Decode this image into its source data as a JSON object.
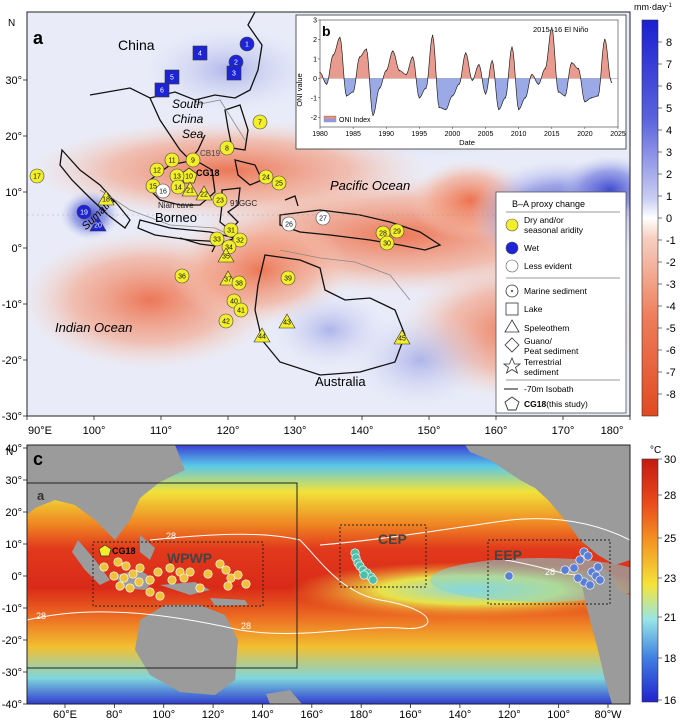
{
  "panel_a": {
    "letter": "a",
    "regions": {
      "china": "China",
      "scs": [
        "South",
        "China",
        "Sea"
      ],
      "borneo": "Borneo",
      "sumatra": "Sumatra",
      "pacific": "Pacific Ocean",
      "indian": "Indian Ocean",
      "australia": "Australia"
    },
    "site_labels": {
      "cg18": "CG18",
      "cb19": "CB19",
      "niah": "Niah cave",
      "gc": "91GGC"
    },
    "lon_ticks": [
      "90°E",
      "100°",
      "110°",
      "120°",
      "130°",
      "140°",
      "150°",
      "160°",
      "170°",
      "180°"
    ],
    "lat_ticks": [
      "30°",
      "20°",
      "10°",
      "0°",
      "-10°",
      "-20°",
      "-30°"
    ],
    "north": "N",
    "sites": [
      {
        "n": "1",
        "t": "wet"
      },
      {
        "n": "2",
        "t": "wet"
      },
      {
        "n": "3",
        "t": "wet"
      },
      {
        "n": "4",
        "t": "wet"
      },
      {
        "n": "5",
        "t": "wet"
      },
      {
        "n": "6",
        "t": "wet"
      },
      {
        "n": "7",
        "t": "dry"
      },
      {
        "n": "8",
        "t": "dry"
      },
      {
        "n": "9",
        "t": "dry"
      },
      {
        "n": "10",
        "t": "dry"
      },
      {
        "n": "11",
        "t": "dry"
      },
      {
        "n": "12",
        "t": "dry"
      },
      {
        "n": "13",
        "t": "dry"
      },
      {
        "n": "14",
        "t": "dry"
      },
      {
        "n": "15",
        "t": "dry"
      },
      {
        "n": "16",
        "t": "less"
      },
      {
        "n": "17",
        "t": "dry"
      },
      {
        "n": "18",
        "t": "dry"
      },
      {
        "n": "19",
        "t": "wet"
      },
      {
        "n": "20",
        "t": "wet"
      },
      {
        "n": "21",
        "t": "dry"
      },
      {
        "n": "22",
        "t": "dry"
      },
      {
        "n": "23",
        "t": "dry"
      },
      {
        "n": "24",
        "t": "dry"
      },
      {
        "n": "25",
        "t": "dry"
      },
      {
        "n": "26",
        "t": "less"
      },
      {
        "n": "27",
        "t": "less"
      },
      {
        "n": "28",
        "t": "dry"
      },
      {
        "n": "29",
        "t": "dry"
      },
      {
        "n": "30",
        "t": "dry"
      },
      {
        "n": "31",
        "t": "dry"
      },
      {
        "n": "32",
        "t": "dry"
      },
      {
        "n": "33",
        "t": "dry"
      },
      {
        "n": "34",
        "t": "dry"
      },
      {
        "n": "35",
        "t": "dry"
      },
      {
        "n": "36",
        "t": "dry"
      },
      {
        "n": "37",
        "t": "dry"
      },
      {
        "n": "38",
        "t": "dry"
      },
      {
        "n": "39",
        "t": "dry"
      },
      {
        "n": "40",
        "t": "dry"
      },
      {
        "n": "41",
        "t": "dry"
      },
      {
        "n": "42",
        "t": "dry"
      },
      {
        "n": "43",
        "t": "dry"
      },
      {
        "n": "44",
        "t": "dry"
      },
      {
        "n": "45",
        "t": "dry"
      }
    ],
    "legend": {
      "title": "B–A proxy change",
      "dry": [
        "Dry and/or",
        "seasonal aridity"
      ],
      "wet": "Wet",
      "less": "Less evident",
      "marine": "Marine sediment",
      "lake": "Lake",
      "speleothem": "Speleothem",
      "guano": [
        "Guano/",
        "Peat sediment"
      ],
      "terrestrial": [
        "Terrestrial",
        "sediment"
      ],
      "isobath": "-70m Isobath",
      "cg18_bold": "CG18",
      "cg18_rest": "(this study)"
    },
    "colorbar": {
      "unit": "mm·day",
      "unit_sup": "-1",
      "ticks": [
        "8",
        "7",
        "6",
        "5",
        "4",
        "3",
        "2",
        "1",
        "0",
        "-1",
        "-2",
        "-3",
        "-4",
        "-5",
        "-6",
        "-7",
        "-8"
      ]
    }
  },
  "panel_b": {
    "letter": "b",
    "annotation": "2015–16 El Niño",
    "ylabel": "ONI value",
    "xlabel": "Date",
    "legend": "ONI Index",
    "yticks": [
      "3",
      "2",
      "1",
      "0",
      "-1",
      "-2"
    ],
    "xticks": [
      "1980",
      "1985",
      "1990",
      "1995",
      "2000",
      "2005",
      "2010",
      "2015",
      "2020",
      "2025"
    ],
    "chart_data": {
      "type": "area",
      "title": "2015–16 El Niño",
      "xlabel": "Date",
      "ylabel": "ONI value",
      "xlim": [
        1980,
        2025
      ],
      "ylim": [
        -2.5,
        3
      ],
      "series": [
        {
          "name": "ONI Index",
          "x": [
            1980,
            1981,
            1982,
            1983,
            1984,
            1985,
            1986,
            1987,
            1988,
            1989,
            1990,
            1991,
            1992,
            1993,
            1994,
            1995,
            1996,
            1997,
            1998,
            1999,
            2000,
            2001,
            2002,
            2003,
            2004,
            2005,
            2006,
            2007,
            2008,
            2009,
            2010,
            2011,
            2012,
            2013,
            2014,
            2015,
            2016,
            2017,
            2018,
            2019,
            2020,
            2021,
            2022,
            2023,
            2024
          ],
          "y": [
            0.3,
            -0.3,
            1.2,
            2.1,
            -0.9,
            -0.7,
            1.1,
            1.5,
            -1.9,
            -0.5,
            0.4,
            1.4,
            0.4,
            0.2,
            1.1,
            -1.0,
            -0.5,
            2.2,
            -1.5,
            -1.6,
            -0.9,
            -0.3,
            1.3,
            -0.1,
            0.7,
            -0.8,
            0.9,
            -1.6,
            -1.0,
            1.6,
            -1.6,
            -1.0,
            0.2,
            -0.3,
            0.5,
            2.6,
            -0.7,
            -0.9,
            0.8,
            0.5,
            -1.2,
            -1.0,
            -0.9,
            2.0,
            -0.2
          ]
        }
      ]
    }
  },
  "panel_c": {
    "letter": "c",
    "inset_label": "a",
    "cg18": "CG18",
    "regions": {
      "wpwp": "WPWP",
      "cep": "CEP",
      "eep": "EEP"
    },
    "isotherm": "28",
    "lon_ticks": [
      "60°E",
      "80°",
      "100°",
      "120°",
      "140°",
      "160°",
      "180°",
      "160°",
      "140°",
      "120°",
      "100°",
      "80°W"
    ],
    "lat_ticks": [
      "40°",
      "30°",
      "20°",
      "10°",
      "0°",
      "-10°",
      "-20°",
      "-30°",
      "-40°"
    ],
    "north": "N",
    "colorbar": {
      "unit": "°C",
      "ticks": [
        "30",
        "28",
        "25",
        "23",
        "21",
        "18",
        "16"
      ]
    }
  },
  "colors": {
    "dry": "#f2ee2a",
    "wet": "#1d24d6",
    "less": "#ffffff",
    "wet_scale": "#2a35c9",
    "dry_scale": "#e8502b",
    "sst_hot": "#d42018",
    "sst_cold": "#2a2cd0",
    "cep_site": "#4fc0a8",
    "eep_site": "#5a7fd8",
    "wpwp_site": "#f0c23a"
  }
}
